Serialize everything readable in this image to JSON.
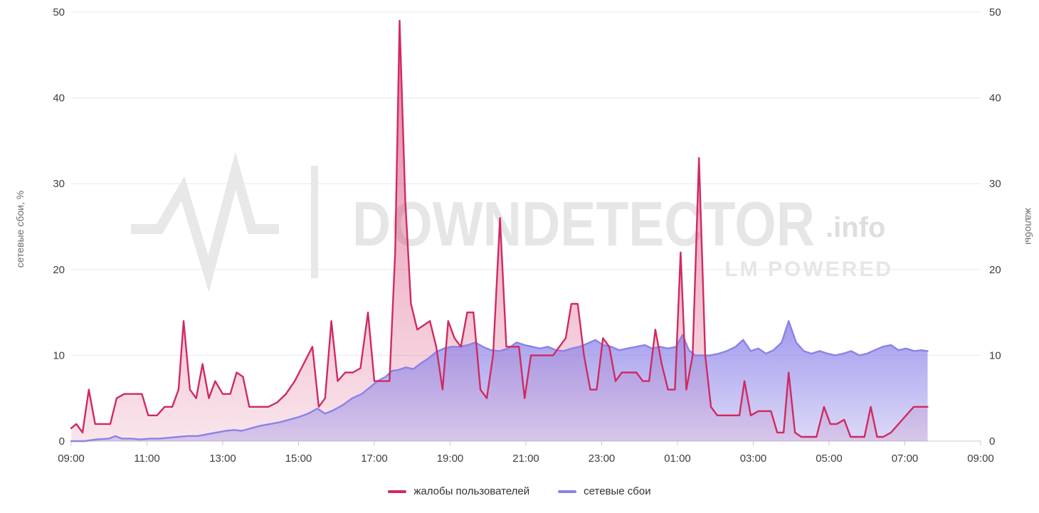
{
  "watermark": {
    "brand": "DOWNDETECTOR",
    "suffix": ".info",
    "tagline": "LM POWERED"
  },
  "legend": [
    {
      "label": "жалобы пользователей",
      "color": "#d02a60"
    },
    {
      "label": "сетевые сбои",
      "color": "#8a82e8"
    }
  ],
  "axes": {
    "y_left_label": "сетевые сбои, %",
    "y_right_label": "жалобы",
    "y_ticks": [
      0,
      10,
      20,
      30,
      40,
      50
    ],
    "x_ticks": [
      "09:00",
      "11:00",
      "13:00",
      "15:00",
      "17:00",
      "19:00",
      "21:00",
      "23:00",
      "01:00",
      "03:00",
      "05:00",
      "07:00",
      "09:00"
    ],
    "x_tick_interval_minutes": 120
  },
  "chart_data": {
    "type": "area",
    "title": "",
    "x_unit": "minutes since 09:00",
    "x_range": [
      0,
      1440
    ],
    "ylim": [
      0,
      50
    ],
    "grid": true,
    "legend_position": "bottom",
    "series": [
      {
        "key": "complaints",
        "name": "жалобы пользователей",
        "color": "#d02a60",
        "fill_top": "rgba(208,42,96,0.6)",
        "fill_bottom": "rgba(208,42,96,0.12)",
        "points": [
          [
            0,
            1.5
          ],
          [
            8,
            2
          ],
          [
            18,
            1
          ],
          [
            28,
            6
          ],
          [
            38,
            2
          ],
          [
            50,
            2
          ],
          [
            62,
            2
          ],
          [
            72,
            5
          ],
          [
            84,
            5.5
          ],
          [
            98,
            5.5
          ],
          [
            112,
            5.5
          ],
          [
            122,
            3
          ],
          [
            136,
            3
          ],
          [
            148,
            4
          ],
          [
            160,
            4
          ],
          [
            170,
            6
          ],
          [
            178,
            14
          ],
          [
            188,
            6
          ],
          [
            198,
            5
          ],
          [
            208,
            9
          ],
          [
            218,
            5
          ],
          [
            228,
            7
          ],
          [
            240,
            5.5
          ],
          [
            252,
            5.5
          ],
          [
            262,
            8
          ],
          [
            272,
            7.5
          ],
          [
            282,
            4
          ],
          [
            296,
            4
          ],
          [
            312,
            4
          ],
          [
            326,
            4.5
          ],
          [
            340,
            5.5
          ],
          [
            354,
            7
          ],
          [
            368,
            9
          ],
          [
            382,
            11
          ],
          [
            392,
            4
          ],
          [
            402,
            5
          ],
          [
            412,
            14
          ],
          [
            422,
            7
          ],
          [
            434,
            8
          ],
          [
            446,
            8
          ],
          [
            458,
            8.5
          ],
          [
            470,
            15
          ],
          [
            480,
            7
          ],
          [
            492,
            7
          ],
          [
            504,
            7
          ],
          [
            513,
            22
          ],
          [
            520,
            49
          ],
          [
            529,
            28
          ],
          [
            538,
            16
          ],
          [
            548,
            13
          ],
          [
            558,
            13.5
          ],
          [
            568,
            14
          ],
          [
            578,
            11
          ],
          [
            588,
            6
          ],
          [
            597,
            14
          ],
          [
            607,
            12
          ],
          [
            617,
            11
          ],
          [
            627,
            15
          ],
          [
            637,
            15
          ],
          [
            648,
            6
          ],
          [
            658,
            5
          ],
          [
            668,
            10
          ],
          [
            679,
            26
          ],
          [
            689,
            11
          ],
          [
            699,
            11
          ],
          [
            709,
            11
          ],
          [
            718,
            5
          ],
          [
            728,
            10
          ],
          [
            740,
            10
          ],
          [
            752,
            10
          ],
          [
            763,
            10
          ],
          [
            773,
            11
          ],
          [
            783,
            12
          ],
          [
            792,
            16
          ],
          [
            802,
            16
          ],
          [
            812,
            10
          ],
          [
            822,
            6
          ],
          [
            832,
            6
          ],
          [
            842,
            12
          ],
          [
            852,
            11
          ],
          [
            862,
            7
          ],
          [
            872,
            8
          ],
          [
            884,
            8
          ],
          [
            895,
            8
          ],
          [
            905,
            7
          ],
          [
            915,
            7
          ],
          [
            925,
            13
          ],
          [
            935,
            9
          ],
          [
            945,
            6
          ],
          [
            956,
            6
          ],
          [
            965,
            22
          ],
          [
            974,
            6
          ],
          [
            984,
            10
          ],
          [
            994,
            33
          ],
          [
            1004,
            10
          ],
          [
            1013,
            4
          ],
          [
            1023,
            3
          ],
          [
            1036,
            3
          ],
          [
            1048,
            3
          ],
          [
            1058,
            3
          ],
          [
            1066,
            7
          ],
          [
            1076,
            3
          ],
          [
            1088,
            3.5
          ],
          [
            1098,
            3.5
          ],
          [
            1108,
            3.5
          ],
          [
            1118,
            1
          ],
          [
            1128,
            1
          ],
          [
            1136,
            8
          ],
          [
            1146,
            1
          ],
          [
            1156,
            0.5
          ],
          [
            1168,
            0.5
          ],
          [
            1180,
            0.5
          ],
          [
            1192,
            4
          ],
          [
            1202,
            2
          ],
          [
            1212,
            2
          ],
          [
            1224,
            2.5
          ],
          [
            1234,
            0.5
          ],
          [
            1246,
            0.5
          ],
          [
            1256,
            0.5
          ],
          [
            1266,
            4
          ],
          [
            1276,
            0.5
          ],
          [
            1286,
            0.5
          ],
          [
            1298,
            1
          ],
          [
            1310,
            2
          ],
          [
            1322,
            3
          ],
          [
            1334,
            4
          ],
          [
            1346,
            4
          ],
          [
            1356,
            4
          ]
        ]
      },
      {
        "key": "network-failures",
        "name": "сетевые сбои",
        "color": "#8a82e8",
        "fill_top": "rgba(138,130,232,0.8)",
        "fill_bottom": "rgba(138,130,232,0.3)",
        "points": [
          [
            0,
            0
          ],
          [
            20,
            0
          ],
          [
            40,
            0.2
          ],
          [
            60,
            0.3
          ],
          [
            70,
            0.6
          ],
          [
            80,
            0.3
          ],
          [
            95,
            0.3
          ],
          [
            110,
            0.2
          ],
          [
            125,
            0.3
          ],
          [
            140,
            0.3
          ],
          [
            155,
            0.4
          ],
          [
            170,
            0.5
          ],
          [
            185,
            0.6
          ],
          [
            200,
            0.6
          ],
          [
            215,
            0.8
          ],
          [
            230,
            1
          ],
          [
            245,
            1.2
          ],
          [
            258,
            1.3
          ],
          [
            270,
            1.2
          ],
          [
            285,
            1.5
          ],
          [
            300,
            1.8
          ],
          [
            315,
            2
          ],
          [
            330,
            2.2
          ],
          [
            345,
            2.5
          ],
          [
            360,
            2.8
          ],
          [
            375,
            3.2
          ],
          [
            390,
            3.8
          ],
          [
            402,
            3.2
          ],
          [
            415,
            3.6
          ],
          [
            430,
            4.2
          ],
          [
            445,
            5
          ],
          [
            460,
            5.5
          ],
          [
            472,
            6.2
          ],
          [
            485,
            7
          ],
          [
            498,
            7.5
          ],
          [
            508,
            8.2
          ],
          [
            518,
            8.3
          ],
          [
            530,
            8.6
          ],
          [
            542,
            8.4
          ],
          [
            552,
            9
          ],
          [
            565,
            9.6
          ],
          [
            578,
            10.4
          ],
          [
            590,
            10.8
          ],
          [
            602,
            11
          ],
          [
            615,
            11
          ],
          [
            628,
            11.2
          ],
          [
            640,
            11.5
          ],
          [
            652,
            11
          ],
          [
            665,
            10.6
          ],
          [
            678,
            10.5
          ],
          [
            692,
            10.8
          ],
          [
            705,
            11.5
          ],
          [
            718,
            11.2
          ],
          [
            730,
            11
          ],
          [
            742,
            10.8
          ],
          [
            755,
            11
          ],
          [
            768,
            10.6
          ],
          [
            780,
            10.5
          ],
          [
            792,
            10.8
          ],
          [
            805,
            11
          ],
          [
            818,
            11.4
          ],
          [
            830,
            11.8
          ],
          [
            842,
            11.2
          ],
          [
            855,
            11
          ],
          [
            868,
            10.6
          ],
          [
            880,
            10.8
          ],
          [
            895,
            11
          ],
          [
            908,
            11.2
          ],
          [
            920,
            10.8
          ],
          [
            932,
            11
          ],
          [
            945,
            10.8
          ],
          [
            958,
            11
          ],
          [
            968,
            12.4
          ],
          [
            978,
            10.6
          ],
          [
            988,
            10
          ],
          [
            1000,
            10
          ],
          [
            1012,
            10
          ],
          [
            1025,
            10.2
          ],
          [
            1038,
            10.5
          ],
          [
            1052,
            11
          ],
          [
            1064,
            11.8
          ],
          [
            1076,
            10.5
          ],
          [
            1088,
            10.8
          ],
          [
            1100,
            10.2
          ],
          [
            1112,
            10.6
          ],
          [
            1125,
            11.5
          ],
          [
            1136,
            14
          ],
          [
            1148,
            11.5
          ],
          [
            1160,
            10.5
          ],
          [
            1172,
            10.2
          ],
          [
            1185,
            10.5
          ],
          [
            1198,
            10.2
          ],
          [
            1210,
            10
          ],
          [
            1222,
            10.2
          ],
          [
            1235,
            10.5
          ],
          [
            1248,
            10
          ],
          [
            1260,
            10.2
          ],
          [
            1272,
            10.6
          ],
          [
            1285,
            11
          ],
          [
            1298,
            11.2
          ],
          [
            1310,
            10.6
          ],
          [
            1322,
            10.8
          ],
          [
            1335,
            10.5
          ],
          [
            1346,
            10.6
          ],
          [
            1356,
            10.5
          ]
        ]
      }
    ]
  },
  "colors": {
    "grid": "#e8e8e8",
    "axis": "#c9c9c9",
    "tick_text": "#3d3d3d",
    "axis_label_text": "#6b6b6b",
    "watermark": "#e8e8e8"
  }
}
